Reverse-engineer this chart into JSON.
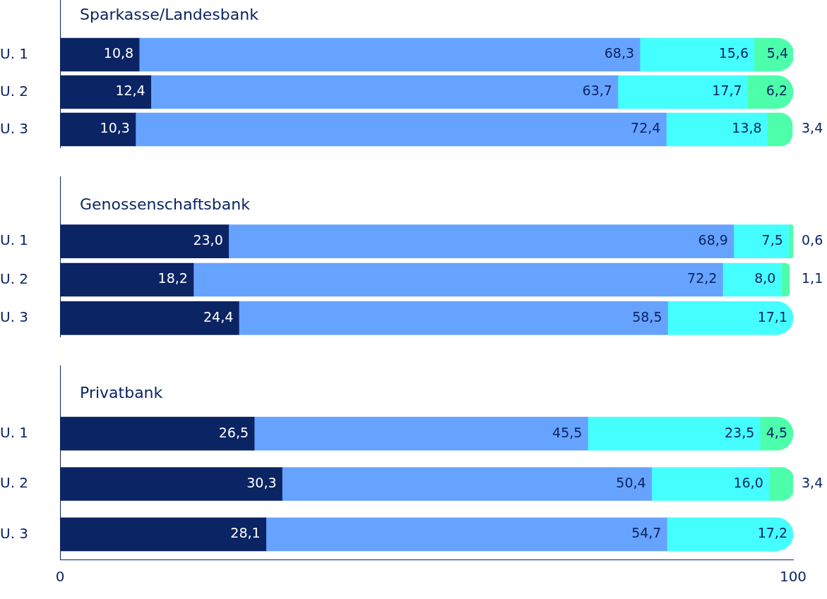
{
  "chart_data": [
    {
      "type": "bar",
      "orientation": "horizontal",
      "stacked": true,
      "title": "Sparkasse/Landesbank",
      "categories": [
        "U. 1",
        "U. 2",
        "U. 3"
      ],
      "xlim": [
        0,
        100
      ],
      "tick_labels": "y",
      "grid": false,
      "series": [
        {
          "color": "#0b2463",
          "values": [
            10.8,
            12.4,
            10.3
          ],
          "value_labels": [
            "10,8",
            "12,4",
            "10,3"
          ]
        },
        {
          "color": "#66a3ff",
          "values": [
            68.3,
            63.7,
            72.4
          ],
          "value_labels": [
            "68,3",
            "63,7",
            "72,4"
          ]
        },
        {
          "color": "#45ffff",
          "values": [
            15.6,
            17.7,
            13.8
          ],
          "value_labels": [
            "15,6",
            "17,7",
            "13,8"
          ]
        },
        {
          "color": "#4dffaa",
          "values": [
            5.4,
            6.2,
            3.4
          ],
          "value_labels": [
            "5,4",
            "6,2",
            "3,4"
          ]
        }
      ]
    },
    {
      "type": "bar",
      "orientation": "horizontal",
      "stacked": true,
      "title": "Genossenschaftsbank",
      "categories": [
        "U. 1",
        "U. 2",
        "U. 3"
      ],
      "xlim": [
        0,
        100
      ],
      "tick_labels": "y",
      "grid": false,
      "series": [
        {
          "color": "#0b2463",
          "values": [
            23.0,
            18.2,
            24.4
          ],
          "value_labels": [
            "23,0",
            "18,2",
            "24,4"
          ]
        },
        {
          "color": "#66a3ff",
          "values": [
            68.9,
            72.2,
            58.5
          ],
          "value_labels": [
            "68,9",
            "72,2",
            "58,5"
          ]
        },
        {
          "color": "#45ffff",
          "values": [
            7.5,
            8.0,
            17.1
          ],
          "value_labels": [
            "7,5",
            "8,0",
            "17,1"
          ]
        },
        {
          "color": "#4dffaa",
          "values": [
            0.6,
            1.1,
            null
          ],
          "value_labels": [
            "0,6",
            "1,1",
            null
          ]
        }
      ]
    },
    {
      "type": "bar",
      "orientation": "horizontal",
      "stacked": true,
      "title": "Privatbank",
      "categories": [
        "U. 1",
        "U. 2",
        "U. 3"
      ],
      "xlim": [
        0,
        100
      ],
      "xticks": [
        0,
        100
      ],
      "grid": false,
      "series": [
        {
          "color": "#0b2463",
          "values": [
            26.5,
            30.3,
            28.1
          ],
          "value_labels": [
            "26,5",
            "30,3",
            "28,1"
          ]
        },
        {
          "color": "#66a3ff",
          "values": [
            45.5,
            50.4,
            54.7
          ],
          "value_labels": [
            "45,5",
            "50,4",
            "54,7"
          ]
        },
        {
          "color": "#45ffff",
          "values": [
            23.5,
            16.0,
            17.2
          ],
          "value_labels": [
            "23,5",
            "16,0",
            "17,2"
          ]
        },
        {
          "color": "#4dffaa",
          "values": [
            4.5,
            3.4,
            null
          ],
          "value_labels": [
            "4,5",
            "3,4",
            null
          ]
        }
      ]
    }
  ]
}
